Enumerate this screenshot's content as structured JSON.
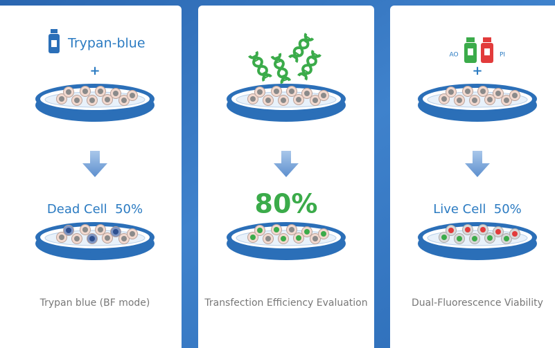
{
  "cards": [
    {
      "reagent": "Trypan-blue",
      "plus": "+",
      "result": "Dead Cell  50%",
      "caption": "Trypan blue (BF mode)"
    },
    {
      "result": "80%",
      "caption": "Transfection Efficiency Evaluation"
    },
    {
      "reagent_left": "AO",
      "reagent_right": "PI",
      "plus": "+",
      "result": "Live Cell  50%",
      "caption": "Dual-Fluorescence Viability"
    }
  ]
}
